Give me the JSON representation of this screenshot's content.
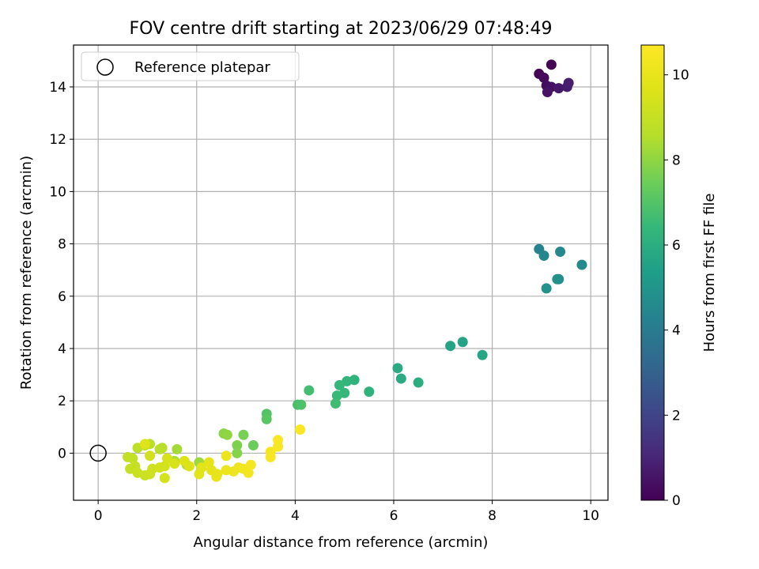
{
  "chart_data": {
    "type": "scatter",
    "title": "FOV centre drift starting at 2023/06/29 07:48:49",
    "xlabel": "Angular distance from reference (arcmin)",
    "ylabel": "Rotation from reference (arcmin)",
    "xlim": [
      -0.5,
      10.35
    ],
    "ylim": [
      -1.8,
      15.6
    ],
    "xticks": [
      0,
      2,
      4,
      6,
      8,
      10
    ],
    "yticks": [
      0,
      2,
      4,
      6,
      8,
      10,
      12,
      14
    ],
    "grid": true,
    "legend": {
      "position": "top-left",
      "entries": [
        "Reference platepar"
      ]
    },
    "reference_point": {
      "label": "Reference platepar",
      "x": 0,
      "y": 0,
      "marker": "open-circle"
    },
    "colorbar": {
      "label": "Hours from first FF file",
      "colormap": "viridis",
      "range": [
        0,
        10.7
      ],
      "ticks": [
        0,
        2,
        4,
        6,
        8,
        10
      ]
    },
    "series": [
      {
        "points": [
          {
            "x": 8.95,
            "y": 14.5,
            "c": 0.1
          },
          {
            "x": 9.05,
            "y": 14.35,
            "c": 0.2
          },
          {
            "x": 9.2,
            "y": 14.85,
            "c": 0.1
          },
          {
            "x": 9.1,
            "y": 14.05,
            "c": 0.3
          },
          {
            "x": 9.2,
            "y": 14.0,
            "c": 0.4
          },
          {
            "x": 9.12,
            "y": 13.8,
            "c": 0.5
          },
          {
            "x": 9.35,
            "y": 13.95,
            "c": 0.6
          },
          {
            "x": 9.52,
            "y": 14.0,
            "c": 0.7
          },
          {
            "x": 9.55,
            "y": 14.15,
            "c": 0.8
          },
          {
            "x": 8.95,
            "y": 7.8,
            "c": 4.3
          },
          {
            "x": 9.05,
            "y": 7.55,
            "c": 4.4
          },
          {
            "x": 9.38,
            "y": 7.7,
            "c": 4.5
          },
          {
            "x": 9.82,
            "y": 7.2,
            "c": 4.6
          },
          {
            "x": 9.35,
            "y": 6.65,
            "c": 4.7
          },
          {
            "x": 9.32,
            "y": 6.65,
            "c": 4.8
          },
          {
            "x": 9.1,
            "y": 6.3,
            "c": 4.9
          },
          {
            "x": 7.15,
            "y": 4.1,
            "c": 5.6
          },
          {
            "x": 7.4,
            "y": 4.25,
            "c": 5.6
          },
          {
            "x": 7.8,
            "y": 3.75,
            "c": 5.7
          },
          {
            "x": 6.08,
            "y": 3.25,
            "c": 5.9
          },
          {
            "x": 6.15,
            "y": 2.85,
            "c": 5.9
          },
          {
            "x": 6.5,
            "y": 2.7,
            "c": 6.0
          },
          {
            "x": 5.5,
            "y": 2.35,
            "c": 6.2
          },
          {
            "x": 5.2,
            "y": 2.8,
            "c": 6.2
          },
          {
            "x": 5.05,
            "y": 2.75,
            "c": 6.3
          },
          {
            "x": 4.9,
            "y": 2.6,
            "c": 6.4
          },
          {
            "x": 5.0,
            "y": 2.3,
            "c": 6.4
          },
          {
            "x": 4.85,
            "y": 2.2,
            "c": 6.5
          },
          {
            "x": 4.82,
            "y": 1.9,
            "c": 6.6
          },
          {
            "x": 4.28,
            "y": 2.4,
            "c": 6.7
          },
          {
            "x": 4.05,
            "y": 1.85,
            "c": 6.8
          },
          {
            "x": 4.12,
            "y": 1.85,
            "c": 6.9
          },
          {
            "x": 3.42,
            "y": 1.5,
            "c": 7.0
          },
          {
            "x": 3.42,
            "y": 1.3,
            "c": 7.1
          },
          {
            "x": 3.15,
            "y": 0.3,
            "c": 7.4
          },
          {
            "x": 2.95,
            "y": 0.7,
            "c": 7.6
          },
          {
            "x": 2.82,
            "y": 0.3,
            "c": 7.7
          },
          {
            "x": 2.82,
            "y": 0.0,
            "c": 7.8
          },
          {
            "x": 2.55,
            "y": 0.75,
            "c": 7.9
          },
          {
            "x": 2.62,
            "y": 0.7,
            "c": 8.0
          },
          {
            "x": 2.05,
            "y": -0.35,
            "c": 8.2
          },
          {
            "x": 1.6,
            "y": 0.15,
            "c": 8.3
          },
          {
            "x": 1.55,
            "y": -0.3,
            "c": 8.4
          },
          {
            "x": 1.8,
            "y": -0.45,
            "c": 8.5
          },
          {
            "x": 1.3,
            "y": 0.2,
            "c": 8.6
          },
          {
            "x": 1.25,
            "y": 0.15,
            "c": 8.7
          },
          {
            "x": 1.05,
            "y": 0.35,
            "c": 8.7
          },
          {
            "x": 0.95,
            "y": 0.3,
            "c": 8.8
          },
          {
            "x": 0.8,
            "y": 0.2,
            "c": 8.8
          },
          {
            "x": 0.7,
            "y": -0.2,
            "c": 8.9
          },
          {
            "x": 0.6,
            "y": -0.15,
            "c": 8.9
          },
          {
            "x": 0.75,
            "y": -0.5,
            "c": 9.0
          },
          {
            "x": 0.65,
            "y": -0.6,
            "c": 9.0
          },
          {
            "x": 0.8,
            "y": -0.75,
            "c": 9.1
          },
          {
            "x": 0.95,
            "y": -0.85,
            "c": 9.1
          },
          {
            "x": 1.05,
            "y": -0.8,
            "c": 9.2
          },
          {
            "x": 1.1,
            "y": -0.6,
            "c": 9.2
          },
          {
            "x": 1.05,
            "y": -0.1,
            "c": 9.3
          },
          {
            "x": 1.25,
            "y": -0.55,
            "c": 9.3
          },
          {
            "x": 1.35,
            "y": -0.95,
            "c": 9.4
          },
          {
            "x": 1.35,
            "y": -0.5,
            "c": 9.4
          },
          {
            "x": 1.4,
            "y": -0.2,
            "c": 9.5
          },
          {
            "x": 1.55,
            "y": -0.4,
            "c": 9.5
          },
          {
            "x": 1.75,
            "y": -0.3,
            "c": 9.6
          },
          {
            "x": 1.85,
            "y": -0.5,
            "c": 9.6
          },
          {
            "x": 0.95,
            "y": 0.35,
            "c": 9.7
          },
          {
            "x": 2.1,
            "y": -0.55,
            "c": 9.8
          },
          {
            "x": 2.05,
            "y": -0.8,
            "c": 9.8
          },
          {
            "x": 2.25,
            "y": -0.35,
            "c": 9.9
          },
          {
            "x": 2.3,
            "y": -0.65,
            "c": 9.9
          },
          {
            "x": 2.42,
            "y": -0.8,
            "c": 10.0
          },
          {
            "x": 2.4,
            "y": -0.9,
            "c": 10.0
          },
          {
            "x": 2.6,
            "y": -0.65,
            "c": 10.1
          },
          {
            "x": 2.6,
            "y": -0.1,
            "c": 10.1
          },
          {
            "x": 2.75,
            "y": -0.7,
            "c": 10.2
          },
          {
            "x": 2.85,
            "y": -0.55,
            "c": 10.2
          },
          {
            "x": 2.95,
            "y": -0.6,
            "c": 10.3
          },
          {
            "x": 3.05,
            "y": -0.75,
            "c": 10.3
          },
          {
            "x": 3.1,
            "y": -0.45,
            "c": 10.4
          },
          {
            "x": 3.5,
            "y": 0.05,
            "c": 10.4
          },
          {
            "x": 3.5,
            "y": -0.15,
            "c": 10.5
          },
          {
            "x": 3.65,
            "y": 0.25,
            "c": 10.5
          },
          {
            "x": 3.65,
            "y": 0.5,
            "c": 10.6
          },
          {
            "x": 4.1,
            "y": 0.9,
            "c": 10.6
          }
        ]
      }
    ]
  }
}
